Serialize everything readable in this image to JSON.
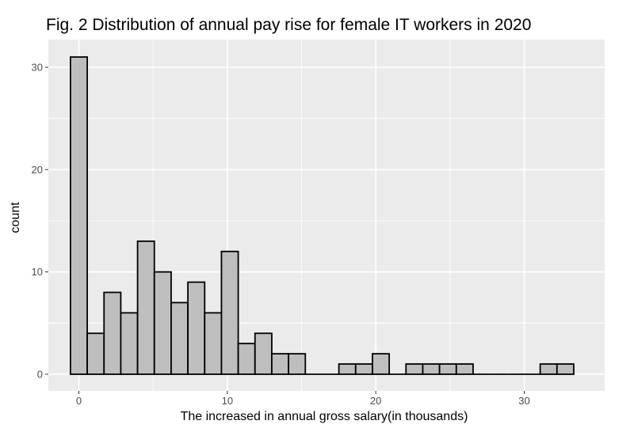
{
  "chart_data": {
    "type": "bar",
    "title": "Fig. 2 Distribution of annual pay rise for female IT workers in 2020",
    "xlabel": "The increased in annual gross salary(in thousands)",
    "ylabel": "count",
    "xlim": [
      -0.5,
      33.5
    ],
    "ylim": [
      0,
      31
    ],
    "x_ticks": [
      0,
      10,
      20,
      30
    ],
    "y_ticks": [
      0,
      10,
      20,
      30
    ],
    "bin_width": 1.13,
    "bins": [
      {
        "center": 0.0,
        "count": 31
      },
      {
        "center": 1.13,
        "count": 4
      },
      {
        "center": 2.26,
        "count": 8
      },
      {
        "center": 3.39,
        "count": 6
      },
      {
        "center": 4.52,
        "count": 13
      },
      {
        "center": 5.65,
        "count": 10
      },
      {
        "center": 6.78,
        "count": 7
      },
      {
        "center": 7.91,
        "count": 9
      },
      {
        "center": 9.04,
        "count": 6
      },
      {
        "center": 10.17,
        "count": 12
      },
      {
        "center": 11.3,
        "count": 3
      },
      {
        "center": 12.43,
        "count": 4
      },
      {
        "center": 13.56,
        "count": 2
      },
      {
        "center": 14.69,
        "count": 2
      },
      {
        "center": 15.82,
        "count": 0
      },
      {
        "center": 16.95,
        "count": 0
      },
      {
        "center": 18.08,
        "count": 1
      },
      {
        "center": 19.21,
        "count": 1
      },
      {
        "center": 20.34,
        "count": 2
      },
      {
        "center": 21.47,
        "count": 0
      },
      {
        "center": 22.6,
        "count": 1
      },
      {
        "center": 23.73,
        "count": 1
      },
      {
        "center": 24.86,
        "count": 1
      },
      {
        "center": 25.99,
        "count": 1
      },
      {
        "center": 27.12,
        "count": 0
      },
      {
        "center": 28.25,
        "count": 0
      },
      {
        "center": 29.38,
        "count": 0
      },
      {
        "center": 30.51,
        "count": 0
      },
      {
        "center": 31.64,
        "count": 1
      },
      {
        "center": 32.77,
        "count": 1
      }
    ],
    "grid": true,
    "colors": {
      "panel": "#ebebeb",
      "grid": "#ffffff",
      "bar_fill": "#bebebe",
      "bar_stroke": "#000000"
    }
  }
}
